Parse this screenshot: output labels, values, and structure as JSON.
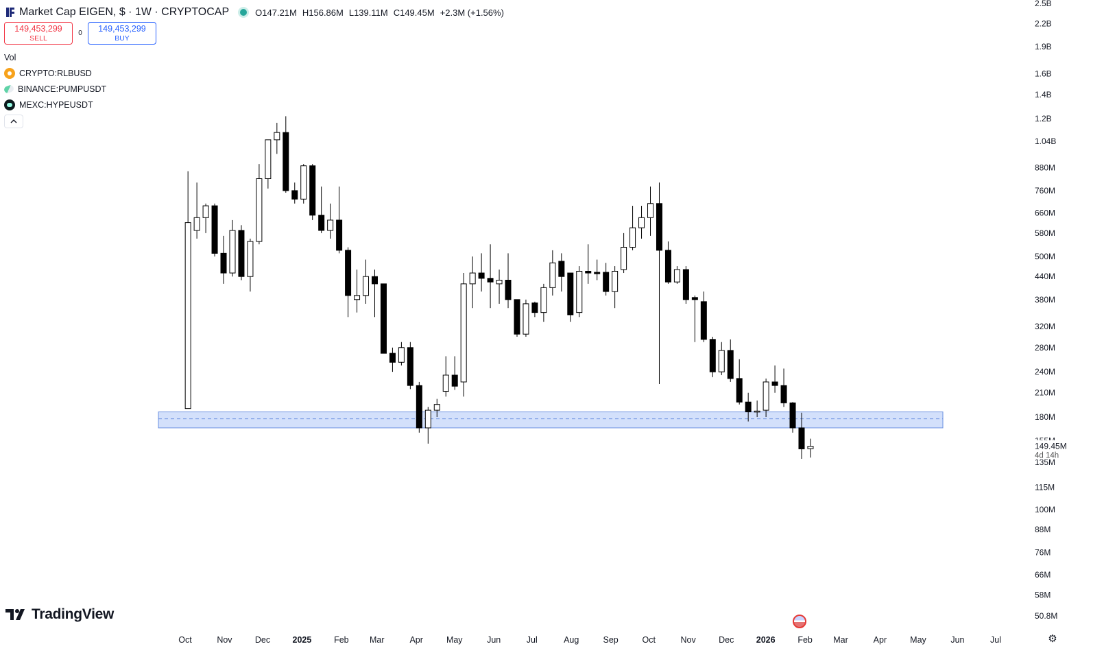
{
  "header": {
    "title": "Market Cap EIGEN, $ · 1W · CRYPTOCAP",
    "o": "O147.21M",
    "h": "H156.86M",
    "l": "L139.11M",
    "c": "C149.45M",
    "change": "+2.3M (+1.56%)"
  },
  "trade": {
    "sell_price": "149,453,299",
    "sell_label": "SELL",
    "spread": "0",
    "buy_price": "149,453,299",
    "buy_label": "BUY"
  },
  "legend": {
    "vol": "Vol",
    "symbols": [
      "CRYPTO:RLBUSD",
      "BINANCE:PUMPUSDT",
      "MEXC:HYPEUSDT"
    ],
    "collapse_icon": "chevron-up-icon"
  },
  "brand": "TradingView",
  "colors": {
    "up_fill": "#ffffff",
    "down_fill": "#000000",
    "wick": "#000000",
    "zone_fill": "#d3e0fb",
    "zone_border": "#6a8fe0",
    "text": "#131722"
  },
  "chart_data": {
    "type": "candlestick",
    "title": "Market Cap EIGEN, $ · 1W · CRYPTOCAP",
    "y_scale": "log",
    "ylim": [
      47000000,
      2600000000
    ],
    "y_ticks": [
      {
        "v": 2500000000,
        "label": "2.5B"
      },
      {
        "v": 2200000000,
        "label": "2.2B"
      },
      {
        "v": 1900000000,
        "label": "1.9B"
      },
      {
        "v": 1600000000,
        "label": "1.6B"
      },
      {
        "v": 1400000000,
        "label": "1.4B"
      },
      {
        "v": 1200000000,
        "label": "1.2B"
      },
      {
        "v": 1040000000,
        "label": "1.04B"
      },
      {
        "v": 880000000,
        "label": "880M"
      },
      {
        "v": 760000000,
        "label": "760M"
      },
      {
        "v": 660000000,
        "label": "660M"
      },
      {
        "v": 580000000,
        "label": "580M"
      },
      {
        "v": 500000000,
        "label": "500M"
      },
      {
        "v": 440000000,
        "label": "440M"
      },
      {
        "v": 380000000,
        "label": "380M"
      },
      {
        "v": 320000000,
        "label": "320M"
      },
      {
        "v": 280000000,
        "label": "280M"
      },
      {
        "v": 240000000,
        "label": "240M"
      },
      {
        "v": 210000000,
        "label": "210M"
      },
      {
        "v": 180000000,
        "label": "180M"
      },
      {
        "v": 155000000,
        "label": "155M"
      },
      {
        "v": 135000000,
        "label": "135M"
      },
      {
        "v": 115000000,
        "label": "115M"
      },
      {
        "v": 100000000,
        "label": "100M"
      },
      {
        "v": 88000000,
        "label": "88M"
      },
      {
        "v": 76000000,
        "label": "76M"
      },
      {
        "v": 66000000,
        "label": "66M"
      },
      {
        "v": 58000000,
        "label": "58M"
      },
      {
        "v": 50800000,
        "label": "50.8M"
      }
    ],
    "x_ticks": [
      {
        "date": "2024-10-01",
        "label": "Oct",
        "bold": false
      },
      {
        "date": "2024-11-01",
        "label": "Nov",
        "bold": false
      },
      {
        "date": "2024-12-01",
        "label": "Dec",
        "bold": false
      },
      {
        "date": "2025-01-01",
        "label": "2025",
        "bold": true
      },
      {
        "date": "2025-02-01",
        "label": "Feb",
        "bold": false
      },
      {
        "date": "2025-03-01",
        "label": "Mar",
        "bold": false
      },
      {
        "date": "2025-04-01",
        "label": "Apr",
        "bold": false
      },
      {
        "date": "2025-05-01",
        "label": "May",
        "bold": false
      },
      {
        "date": "2025-06-01",
        "label": "Jun",
        "bold": false
      },
      {
        "date": "2025-07-01",
        "label": "Jul",
        "bold": false
      },
      {
        "date": "2025-08-01",
        "label": "Aug",
        "bold": false
      },
      {
        "date": "2025-09-01",
        "label": "Sep",
        "bold": false
      },
      {
        "date": "2025-10-01",
        "label": "Oct",
        "bold": false
      },
      {
        "date": "2025-11-01",
        "label": "Nov",
        "bold": false
      },
      {
        "date": "2025-12-01",
        "label": "Dec",
        "bold": false
      },
      {
        "date": "2026-01-01",
        "label": "2026",
        "bold": true
      },
      {
        "date": "2026-02-01",
        "label": "Feb",
        "bold": false
      },
      {
        "date": "2026-03-01",
        "label": "Mar",
        "bold": false
      },
      {
        "date": "2026-04-01",
        "label": "Apr",
        "bold": false
      },
      {
        "date": "2026-05-01",
        "label": "May",
        "bold": false
      },
      {
        "date": "2026-06-01",
        "label": "Jun",
        "bold": false
      },
      {
        "date": "2026-07-01",
        "label": "Jul",
        "bold": false
      }
    ],
    "candles": [
      {
        "date": "2024-09-30",
        "o": 190000000,
        "h": 860000000,
        "l": 190000000,
        "c": 620000000
      },
      {
        "date": "2024-10-07",
        "o": 590000000,
        "h": 800000000,
        "l": 560000000,
        "c": 640000000
      },
      {
        "date": "2024-10-14",
        "o": 640000000,
        "h": 700000000,
        "l": 580000000,
        "c": 690000000
      },
      {
        "date": "2024-10-21",
        "o": 690000000,
        "h": 700000000,
        "l": 500000000,
        "c": 510000000
      },
      {
        "date": "2024-10-28",
        "o": 510000000,
        "h": 570000000,
        "l": 420000000,
        "c": 450000000
      },
      {
        "date": "2024-11-04",
        "o": 450000000,
        "h": 630000000,
        "l": 440000000,
        "c": 590000000
      },
      {
        "date": "2024-11-11",
        "o": 590000000,
        "h": 610000000,
        "l": 430000000,
        "c": 440000000
      },
      {
        "date": "2024-11-18",
        "o": 440000000,
        "h": 560000000,
        "l": 400000000,
        "c": 550000000
      },
      {
        "date": "2024-11-25",
        "o": 550000000,
        "h": 900000000,
        "l": 540000000,
        "c": 820000000
      },
      {
        "date": "2024-12-02",
        "o": 820000000,
        "h": 1050000000,
        "l": 770000000,
        "c": 1050000000
      },
      {
        "date": "2024-12-09",
        "o": 1050000000,
        "h": 1170000000,
        "l": 960000000,
        "c": 1100000000
      },
      {
        "date": "2024-12-16",
        "o": 1100000000,
        "h": 1220000000,
        "l": 750000000,
        "c": 760000000
      },
      {
        "date": "2024-12-23",
        "o": 760000000,
        "h": 800000000,
        "l": 700000000,
        "c": 720000000
      },
      {
        "date": "2024-12-30",
        "o": 720000000,
        "h": 900000000,
        "l": 700000000,
        "c": 890000000
      },
      {
        "date": "2025-01-06",
        "o": 890000000,
        "h": 900000000,
        "l": 630000000,
        "c": 650000000
      },
      {
        "date": "2025-01-13",
        "o": 650000000,
        "h": 780000000,
        "l": 580000000,
        "c": 590000000
      },
      {
        "date": "2025-01-20",
        "o": 590000000,
        "h": 700000000,
        "l": 560000000,
        "c": 630000000
      },
      {
        "date": "2025-01-27",
        "o": 630000000,
        "h": 780000000,
        "l": 510000000,
        "c": 520000000
      },
      {
        "date": "2025-02-03",
        "o": 520000000,
        "h": 530000000,
        "l": 340000000,
        "c": 390000000
      },
      {
        "date": "2025-02-10",
        "o": 380000000,
        "h": 460000000,
        "l": 350000000,
        "c": 390000000
      },
      {
        "date": "2025-02-17",
        "o": 390000000,
        "h": 490000000,
        "l": 370000000,
        "c": 440000000
      },
      {
        "date": "2025-02-24",
        "o": 440000000,
        "h": 460000000,
        "l": 340000000,
        "c": 420000000
      },
      {
        "date": "2025-03-03",
        "o": 420000000,
        "h": 420000000,
        "l": 270000000,
        "c": 270000000
      },
      {
        "date": "2025-03-10",
        "o": 270000000,
        "h": 280000000,
        "l": 240000000,
        "c": 255000000
      },
      {
        "date": "2025-03-17",
        "o": 255000000,
        "h": 290000000,
        "l": 250000000,
        "c": 280000000
      },
      {
        "date": "2025-03-24",
        "o": 280000000,
        "h": 290000000,
        "l": 215000000,
        "c": 220000000
      },
      {
        "date": "2025-03-31",
        "o": 220000000,
        "h": 225000000,
        "l": 163000000,
        "c": 168000000
      },
      {
        "date": "2025-04-07",
        "o": 168000000,
        "h": 192000000,
        "l": 152000000,
        "c": 188000000
      },
      {
        "date": "2025-04-14",
        "o": 188000000,
        "h": 202000000,
        "l": 180000000,
        "c": 195000000
      },
      {
        "date": "2025-04-21",
        "o": 212000000,
        "h": 265000000,
        "l": 205000000,
        "c": 235000000
      },
      {
        "date": "2025-04-28",
        "o": 235000000,
        "h": 265000000,
        "l": 214000000,
        "c": 219000000
      },
      {
        "date": "2025-05-05",
        "o": 225000000,
        "h": 450000000,
        "l": 205000000,
        "c": 420000000
      },
      {
        "date": "2025-05-12",
        "o": 420000000,
        "h": 500000000,
        "l": 360000000,
        "c": 450000000
      },
      {
        "date": "2025-05-19",
        "o": 450000000,
        "h": 510000000,
        "l": 400000000,
        "c": 435000000
      },
      {
        "date": "2025-05-26",
        "o": 435000000,
        "h": 540000000,
        "l": 360000000,
        "c": 425000000
      },
      {
        "date": "2025-06-02",
        "o": 420000000,
        "h": 460000000,
        "l": 370000000,
        "c": 430000000
      },
      {
        "date": "2025-06-09",
        "o": 430000000,
        "h": 510000000,
        "l": 360000000,
        "c": 380000000
      },
      {
        "date": "2025-06-16",
        "o": 380000000,
        "h": 380000000,
        "l": 300000000,
        "c": 305000000
      },
      {
        "date": "2025-06-23",
        "o": 305000000,
        "h": 380000000,
        "l": 300000000,
        "c": 370000000
      },
      {
        "date": "2025-06-30",
        "o": 372000000,
        "h": 375000000,
        "l": 340000000,
        "c": 350000000
      },
      {
        "date": "2025-07-07",
        "o": 350000000,
        "h": 420000000,
        "l": 330000000,
        "c": 410000000
      },
      {
        "date": "2025-07-14",
        "o": 410000000,
        "h": 520000000,
        "l": 390000000,
        "c": 480000000
      },
      {
        "date": "2025-07-21",
        "o": 485000000,
        "h": 510000000,
        "l": 400000000,
        "c": 440000000
      },
      {
        "date": "2025-07-28",
        "o": 450000000,
        "h": 450000000,
        "l": 330000000,
        "c": 345000000
      },
      {
        "date": "2025-08-04",
        "o": 350000000,
        "h": 470000000,
        "l": 340000000,
        "c": 455000000
      },
      {
        "date": "2025-08-11",
        "o": 455000000,
        "h": 540000000,
        "l": 420000000,
        "c": 450000000
      },
      {
        "date": "2025-08-18",
        "o": 452000000,
        "h": 490000000,
        "l": 430000000,
        "c": 448000000
      },
      {
        "date": "2025-08-25",
        "o": 452000000,
        "h": 480000000,
        "l": 390000000,
        "c": 400000000
      },
      {
        "date": "2025-09-01",
        "o": 400000000,
        "h": 470000000,
        "l": 360000000,
        "c": 455000000
      },
      {
        "date": "2025-09-08",
        "o": 460000000,
        "h": 580000000,
        "l": 450000000,
        "c": 530000000
      },
      {
        "date": "2025-09-15",
        "o": 530000000,
        "h": 690000000,
        "l": 520000000,
        "c": 600000000
      },
      {
        "date": "2025-09-22",
        "o": 600000000,
        "h": 690000000,
        "l": 560000000,
        "c": 640000000
      },
      {
        "date": "2025-09-29",
        "o": 640000000,
        "h": 780000000,
        "l": 570000000,
        "c": 700000000
      },
      {
        "date": "2025-10-06",
        "o": 700000000,
        "h": 800000000,
        "l": 222000000,
        "c": 520000000
      },
      {
        "date": "2025-10-13",
        "o": 520000000,
        "h": 550000000,
        "l": 420000000,
        "c": 425000000
      },
      {
        "date": "2025-10-20",
        "o": 425000000,
        "h": 470000000,
        "l": 420000000,
        "c": 460000000
      },
      {
        "date": "2025-10-27",
        "o": 460000000,
        "h": 470000000,
        "l": 370000000,
        "c": 380000000
      },
      {
        "date": "2025-11-03",
        "o": 385000000,
        "h": 390000000,
        "l": 290000000,
        "c": 380000000
      },
      {
        "date": "2025-11-10",
        "o": 375000000,
        "h": 400000000,
        "l": 290000000,
        "c": 295000000
      },
      {
        "date": "2025-11-17",
        "o": 295000000,
        "h": 300000000,
        "l": 232000000,
        "c": 240000000
      },
      {
        "date": "2025-11-24",
        "o": 240000000,
        "h": 290000000,
        "l": 235000000,
        "c": 275000000
      },
      {
        "date": "2025-12-01",
        "o": 275000000,
        "h": 295000000,
        "l": 225000000,
        "c": 230000000
      },
      {
        "date": "2025-12-08",
        "o": 230000000,
        "h": 260000000,
        "l": 195000000,
        "c": 198000000
      },
      {
        "date": "2025-12-15",
        "o": 198000000,
        "h": 210000000,
        "l": 175000000,
        "c": 186000000
      },
      {
        "date": "2025-12-22",
        "o": 186000000,
        "h": 200000000,
        "l": 180000000,
        "c": 187000000
      },
      {
        "date": "2025-12-29",
        "o": 188000000,
        "h": 230000000,
        "l": 180000000,
        "c": 225000000
      },
      {
        "date": "2026-01-05",
        "o": 225000000,
        "h": 250000000,
        "l": 210000000,
        "c": 220000000
      },
      {
        "date": "2026-01-12",
        "o": 220000000,
        "h": 245000000,
        "l": 192000000,
        "c": 197000000
      },
      {
        "date": "2026-01-19",
        "o": 197000000,
        "h": 198000000,
        "l": 163000000,
        "c": 168000000
      },
      {
        "date": "2026-01-26",
        "o": 168000000,
        "h": 185000000,
        "l": 138000000,
        "c": 147000000
      },
      {
        "date": "2026-02-02",
        "o": 147210000,
        "h": 156860000,
        "l": 139110000,
        "c": 149450000
      }
    ],
    "zone": {
      "top": 186000000,
      "bottom": 168000000,
      "mid": 178000000
    },
    "last_price_label": "149.45M",
    "countdown": "4d 14h"
  }
}
